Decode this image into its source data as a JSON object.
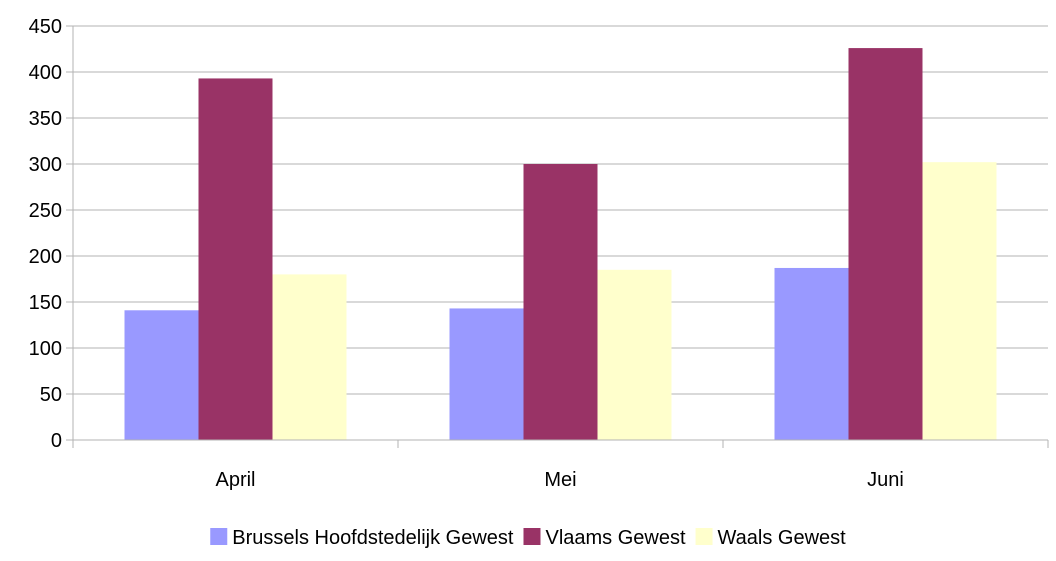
{
  "chart_data": {
    "type": "bar",
    "categories": [
      "April",
      "Mei",
      "Juni"
    ],
    "series": [
      {
        "name": "Brussels Hoofdstedelijk Gewest",
        "color": "#9999FF",
        "values": [
          141,
          143,
          187
        ]
      },
      {
        "name": "Vlaams Gewest",
        "color": "#993366",
        "values": [
          393,
          300,
          426
        ]
      },
      {
        "name": "Waals Gewest",
        "color": "#FFFFCC",
        "values": [
          180,
          185,
          302
        ]
      }
    ],
    "title": "",
    "xlabel": "",
    "ylabel": "",
    "ylim": [
      0,
      450
    ],
    "yticks": [
      0,
      50,
      100,
      150,
      200,
      250,
      300,
      350,
      400,
      450
    ],
    "grid": true,
    "legend_position": "bottom"
  }
}
